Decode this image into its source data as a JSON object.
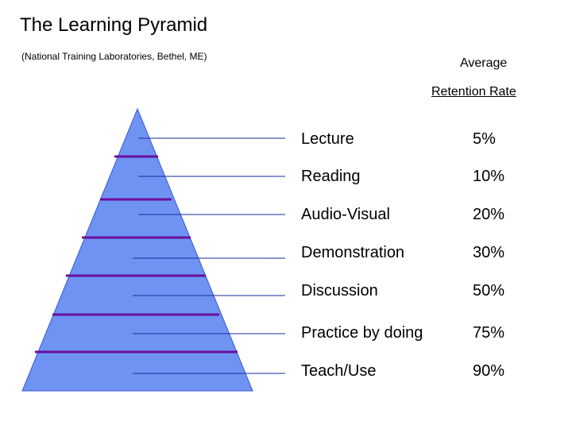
{
  "title": "The Learning Pyramid",
  "subtitle": "(National Training Laboratories, Bethel, ME)",
  "header": {
    "line1": "Average",
    "line2": "Retention Rate"
  },
  "rows": [
    {
      "method": "Lecture",
      "rate": "5%"
    },
    {
      "method": "Reading",
      "rate": "10%"
    },
    {
      "method": "Audio-Visual",
      "rate": "20%"
    },
    {
      "method": "Demonstration",
      "rate": "30%"
    },
    {
      "method": "Discussion",
      "rate": "50%"
    },
    {
      "method": "Practice by doing",
      "rate": "75%"
    },
    {
      "method": "Teach/Use",
      "rate": "90%"
    }
  ],
  "colors": {
    "pyramid_fill": "#6f93f2",
    "pyramid_stroke": "#3a5bd0",
    "band_line": "#6a0e9e",
    "connector_line": "#1a2a9e"
  }
}
